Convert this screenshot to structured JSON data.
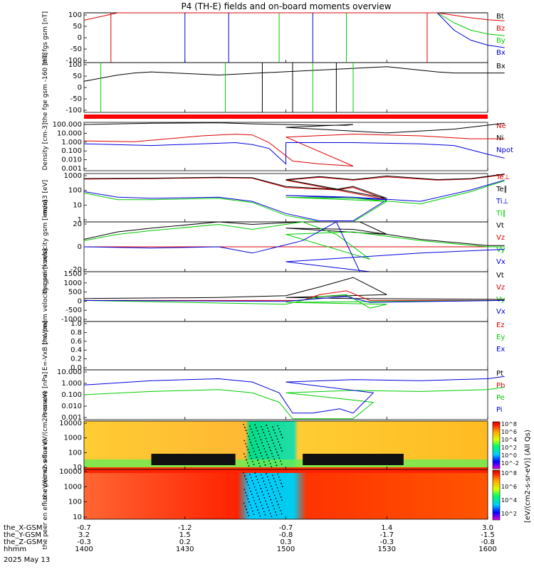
{
  "title": "P4 (TH-E) fields and on-board moments overview",
  "date_label": "2025 May 13",
  "colorbar_label": "[eV/(cm2-s-sr-eV)] (All Qs)",
  "colorbar_ticks": [
    "10^8",
    "10^6",
    "10^4",
    "10^2",
    "10^0",
    "10^-2"
  ],
  "colorbar_ticks2": [
    "10^8",
    "10^6",
    "10^4",
    "10^2"
  ],
  "orbit_rows": [
    {
      "name": "the_X-GSM",
      "values": [
        "-0.7",
        "-1.2",
        "-0.7",
        "1.4",
        "3.0"
      ]
    },
    {
      "name": "the_Y-GSM",
      "values": [
        "3.2",
        "1.5",
        "-0.8",
        "-1.7",
        "-1.5"
      ]
    },
    {
      "name": "the_Z-GSM",
      "values": [
        "-0.3",
        "0.2",
        "0.3",
        "-0.3",
        "-0.8"
      ]
    },
    {
      "name": "hhmm",
      "values": [
        "1400",
        "1430",
        "1500",
        "1530",
        "1600"
      ]
    }
  ],
  "colors": {
    "black": "#000000",
    "red": "#dd0000",
    "green": "#00cc00",
    "blue": "#0000dd",
    "yellow": "#ffdd00"
  },
  "chart_data": [
    {
      "type": "line",
      "ylabel": "the fgs gsm [nT]",
      "yticks": [
        "100",
        "50",
        "0",
        "-50",
        "-100"
      ],
      "ylim": [
        -100,
        100
      ],
      "legend": [
        {
          "name": "Bt",
          "color": "#000000"
        },
        {
          "name": "Bz",
          "color": "#dd0000"
        },
        {
          "name": "By",
          "color": "#00cc00"
        },
        {
          "name": "Bx",
          "color": "#0000dd"
        }
      ],
      "series": [
        {
          "name": "Bt",
          "x": [
            1400,
            1410,
            1420,
            1530,
            1545,
            1560
          ],
          "y": [
            100,
            100,
            100,
            100,
            100,
            100
          ]
        },
        {
          "name": "Bz",
          "x": [
            1400,
            1405,
            1410,
            1545,
            1550,
            1555,
            1560,
            1565
          ],
          "y": [
            70,
            85,
            100,
            100,
            90,
            80,
            72,
            68
          ]
        },
        {
          "name": "By",
          "x": [
            1545,
            1550,
            1555,
            1560,
            1565
          ],
          "y": [
            100,
            60,
            30,
            15,
            8
          ]
        },
        {
          "name": "Bx",
          "x": [
            1545,
            1550,
            1555,
            1560,
            1565
          ],
          "y": [
            100,
            30,
            -10,
            -30,
            -40
          ]
        }
      ]
    },
    {
      "type": "line",
      "ylabel": "the fge gsm -160 [nT]",
      "yticks": [
        "100",
        "50",
        "0",
        "-50",
        "-100"
      ],
      "ylim": [
        -120,
        120
      ],
      "legend": [
        {
          "name": "Bx",
          "color": "#000000"
        }
      ],
      "series": [
        {
          "name": "Bx",
          "x": [
            1400,
            1405,
            1410,
            1415,
            1420,
            1440,
            1530,
            1545,
            1550,
            1560,
            1565
          ],
          "y": [
            30,
            45,
            60,
            70,
            75,
            60,
            100,
            75,
            70,
            70,
            70
          ]
        }
      ]
    },
    {
      "type": "line",
      "ylabel": "Density [cm-3]",
      "yticks": [
        "100.000",
        "10.000",
        "1.000",
        "0.100",
        "0.010",
        "0.001"
      ],
      "ylim": [
        0.001,
        100
      ],
      "log": true,
      "legend": [
        {
          "name": "Ne",
          "color": "#dd0000"
        },
        {
          "name": "Ni",
          "color": "#000000"
        },
        {
          "name": "Npot",
          "color": "#0000dd"
        }
      ],
      "series": [
        {
          "name": "Ne",
          "x": [
            1400,
            1415,
            1435,
            1445,
            1450,
            1455,
            1462,
            1470,
            1480,
            1500,
            1520,
            1540,
            1555,
            1565
          ],
          "y": [
            1.2,
            1.0,
            4,
            6,
            5,
            0.8,
            0.01,
            0.005,
            0.003,
            3,
            6,
            4,
            2,
            2
          ],
          "dx": [
            1462,
            1464,
            1466,
            1468,
            1470
          ]
        },
        {
          "name": "Ni",
          "x": [
            1400,
            1420,
            1440,
            1450,
            1470,
            1478,
            1480,
            1500,
            1530,
            1550,
            1565
          ],
          "y": [
            60,
            80,
            90,
            70,
            50,
            50,
            60,
            30,
            8,
            20,
            80
          ]
        },
        {
          "name": "Npot",
          "x": [
            1400,
            1420,
            1435,
            1445,
            1450,
            1455,
            1460,
            1500,
            1520,
            1540,
            1550,
            1560,
            1565
          ],
          "y": [
            0.6,
            0.4,
            0.6,
            0.8,
            0.5,
            0.2,
            0.005,
            0.8,
            0.8,
            0.6,
            0.4,
            0.05,
            0.02
          ]
        }
      ]
    },
    {
      "type": "line",
      "ylabel": "mom3 [eV]",
      "yticks": [
        "1000",
        "100",
        "10",
        "1"
      ],
      "ylim": [
        1,
        3000
      ],
      "log": true,
      "legend": [
        {
          "name": "Te⊥",
          "color": "#dd0000"
        },
        {
          "name": "Te∥",
          "color": "#000000"
        },
        {
          "name": "Ti⊥",
          "color": "#0000dd"
        },
        {
          "name": "Ti∥",
          "color": "#00cc00"
        }
      ],
      "series": [
        {
          "name": "Te⊥",
          "x": [
            1400,
            1420,
            1440,
            1450,
            1460,
            1475,
            1480,
            1490,
            1500,
            1510,
            1520,
            1530,
            1545,
            1555,
            1565
          ],
          "y": [
            1200,
            1300,
            1500,
            1400,
            300,
            200,
            300,
            40,
            1000,
            1600,
            1000,
            1700,
            1000,
            1200,
            2500
          ]
        },
        {
          "name": "Te∥",
          "x": [
            1400,
            1420,
            1440,
            1450,
            1460,
            1475,
            1480,
            1490,
            1500,
            1510,
            1520,
            1530,
            1545,
            1555,
            1565
          ],
          "y": [
            1300,
            1400,
            1600,
            1500,
            350,
            220,
            350,
            50,
            1100,
            1800,
            1100,
            2000,
            1100,
            1300,
            2800
          ]
        },
        {
          "name": "Ti⊥",
          "x": [
            1400,
            1410,
            1420,
            1440,
            1450,
            1460,
            1470,
            1480,
            1490,
            1500,
            1520,
            1540,
            1555,
            1565
          ],
          "y": [
            150,
            60,
            50,
            60,
            30,
            4,
            1.2,
            1.2,
            40,
            80,
            60,
            30,
            200,
            1000
          ]
        },
        {
          "name": "Ti∥",
          "x": [
            1400,
            1410,
            1420,
            1440,
            1450,
            1460,
            1470,
            1480,
            1490,
            1500,
            1520,
            1540,
            1555,
            1565
          ],
          "y": [
            120,
            40,
            40,
            50,
            25,
            3,
            1,
            1,
            30,
            60,
            50,
            20,
            150,
            900
          ]
        }
      ]
    },
    {
      "type": "line",
      "ylabel": "the peim velocity gsm [km/s]",
      "yticks": [
        "20",
        "0",
        "-20"
      ],
      "ylim": [
        -20,
        20
      ],
      "legend": [
        {
          "name": "Vt",
          "color": "#000000"
        },
        {
          "name": "Vz",
          "color": "#dd0000"
        },
        {
          "name": "Vy",
          "color": "#00cc00"
        },
        {
          "name": "Vx",
          "color": "#0000dd"
        }
      ],
      "series": [
        {
          "name": "Vt",
          "x": [
            1400,
            1410,
            1420,
            1440,
            1450,
            1465,
            1475,
            1482,
            1490,
            1500,
            1520,
            1540,
            1560,
            1565
          ],
          "y": [
            6,
            12,
            15,
            20,
            18,
            30,
            35,
            30,
            10,
            15,
            14,
            6,
            1,
            1
          ]
        },
        {
          "name": "Vz",
          "x": [
            1400,
            1450,
            1470,
            1480,
            1500,
            1565
          ],
          "y": [
            0,
            0,
            0,
            0,
            0,
            0
          ]
        },
        {
          "name": "Vy",
          "x": [
            1400,
            1410,
            1420,
            1440,
            1450,
            1465,
            1475,
            1485,
            1500,
            1520,
            1540,
            1560,
            1565
          ],
          "y": [
            5,
            10,
            13,
            18,
            14,
            20,
            10,
            -10,
            10,
            12,
            5,
            0,
            0
          ]
        },
        {
          "name": "Vx",
          "x": [
            1400,
            1420,
            1440,
            1450,
            1465,
            1475,
            1482,
            1485,
            1500,
            1540,
            1565
          ],
          "y": [
            0,
            -1,
            0,
            -5,
            5,
            20,
            -30,
            -20,
            -12,
            -5,
            -2
          ]
        }
      ]
    },
    {
      "type": "line",
      "ylabel": "the peem velocity gsm [km/s]",
      "yticks": [
        "1500",
        "1000",
        "500",
        "0",
        "-500",
        "-1000"
      ],
      "ylim": [
        -1100,
        1500
      ],
      "legend": [
        {
          "name": "Vt",
          "color": "#000000"
        },
        {
          "name": "Vz",
          "color": "#dd0000"
        },
        {
          "name": "Vy",
          "color": "#00cc00"
        },
        {
          "name": "Vx",
          "color": "#0000dd"
        }
      ],
      "series": [
        {
          "name": "Vt",
          "x": [
            1400,
            1440,
            1460,
            1470,
            1480,
            1490,
            1500,
            1520,
            1540,
            1565
          ],
          "y": [
            100,
            150,
            250,
            700,
            1200,
            300,
            150,
            100,
            80,
            50
          ]
        },
        {
          "name": "Vz",
          "x": [
            1400,
            1465,
            1470,
            1478,
            1485,
            1565
          ],
          "y": [
            0,
            0,
            300,
            500,
            0,
            0
          ]
        },
        {
          "name": "Vy",
          "x": [
            1400,
            1460,
            1470,
            1478,
            1485,
            1490,
            1500,
            1565
          ],
          "y": [
            0,
            -200,
            200,
            300,
            -400,
            -200,
            -100,
            0
          ]
        },
        {
          "name": "Vx",
          "x": [
            1400,
            1460,
            1470,
            1478,
            1485,
            1565
          ],
          "y": [
            0,
            -50,
            100,
            200,
            -100,
            0
          ]
        }
      ]
    },
    {
      "type": "line",
      "ylabel": "E=-VxB [mV/m]",
      "yticks": [
        "1.0",
        "0.8",
        "0.6",
        "0.4",
        "0.2",
        "0.0"
      ],
      "ylim": [
        0,
        1
      ],
      "legend": [
        {
          "name": "Ez",
          "color": "#dd0000"
        },
        {
          "name": "Ey",
          "color": "#00cc00"
        },
        {
          "name": "Ex",
          "color": "#0000dd"
        }
      ],
      "series": []
    },
    {
      "type": "line",
      "ylabel": "Pressure [nPa]",
      "yticks": [
        "10.000",
        "1.000",
        "0.100",
        "0.010",
        "0.001"
      ],
      "ylim": [
        0.0005,
        20
      ],
      "log": true,
      "legend": [
        {
          "name": "Pt",
          "color": "#000000"
        },
        {
          "name": "Pb",
          "color": "#dd0000"
        },
        {
          "name": "Pe",
          "color": "#00cc00"
        },
        {
          "name": "Pi",
          "color": "#0000dd"
        }
      ],
      "series": [
        {
          "name": "Pe",
          "x": [
            1400,
            1420,
            1440,
            1450,
            1458,
            1462,
            1480,
            1486,
            1500,
            1520,
            1540,
            1560,
            1565
          ],
          "y": [
            0.1,
            0.2,
            0.3,
            0.15,
            0.02,
            0.0006,
            0.0006,
            0.02,
            0.15,
            0.25,
            0.2,
            0.3,
            0.5
          ]
        },
        {
          "name": "Pi",
          "x": [
            1400,
            1420,
            1440,
            1450,
            1458,
            1462,
            1468,
            1476,
            1480,
            1486,
            1500,
            1520,
            1540,
            1560,
            1565
          ],
          "y": [
            0.8,
            2,
            3,
            1.5,
            0.15,
            0.002,
            0.002,
            0.005,
            0.002,
            0.15,
            1.5,
            2.5,
            2,
            3,
            5
          ]
        }
      ]
    },
    {
      "type": "heatmap",
      "ylabel": "the peir en eflux eV/(cm2-s-sr-eV)",
      "yticks": [
        "10000",
        "1000",
        "100",
        "10"
      ],
      "ylim": [
        5,
        20000
      ],
      "log": true
    },
    {
      "type": "heatmap",
      "ylabel": "the peer en eflux eV/(cm2-s-sr-eV)",
      "yticks": [
        "10000",
        "1000",
        "100",
        "10"
      ],
      "ylim": [
        5,
        20000
      ],
      "log": true
    }
  ]
}
